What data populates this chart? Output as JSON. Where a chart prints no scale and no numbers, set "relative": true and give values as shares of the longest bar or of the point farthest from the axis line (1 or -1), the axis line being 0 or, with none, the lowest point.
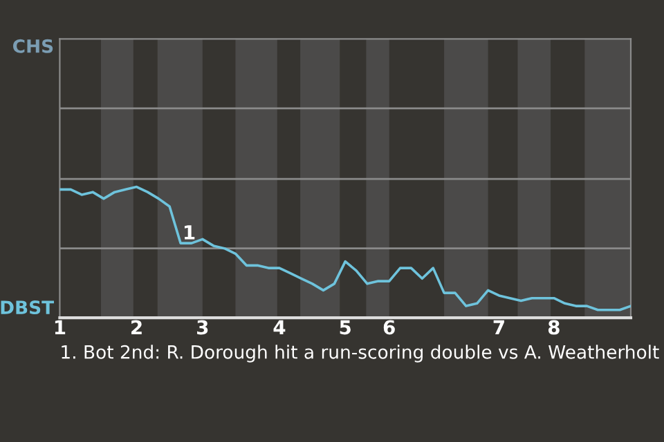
{
  "chart_data": {
    "type": "line",
    "relative": true,
    "categories": [
      "1",
      null,
      null,
      null,
      null,
      null,
      null,
      "2",
      null,
      null,
      null,
      null,
      null,
      "3",
      null,
      null,
      null,
      null,
      null,
      null,
      "4",
      null,
      null,
      null,
      null,
      null,
      "5",
      null,
      null,
      null,
      "6",
      null,
      null,
      null,
      null,
      null,
      null,
      null,
      null,
      null,
      "7",
      null,
      null,
      null,
      null,
      "8",
      null,
      null,
      null,
      null,
      null,
      null,
      null
    ],
    "series": [
      {
        "color": "#6ec3dc",
        "values": [
          0.98,
          0.98,
          0.94,
          0.96,
          0.91,
          0.96,
          0.98,
          1,
          0.96,
          0.91,
          0.85,
          0.57,
          0.57,
          0.6,
          0.55,
          0.53,
          0.49,
          0.4,
          0.4,
          0.38,
          0.38,
          0.34,
          0.3,
          0.26,
          0.21,
          0.26,
          0.43,
          0.36,
          0.26,
          0.28,
          0.28,
          0.38,
          0.38,
          0.3,
          0.38,
          0.19,
          0.19,
          0.09,
          0.11,
          0.21,
          0.17,
          0.15,
          0.13,
          0.15,
          0.15,
          0.15,
          0.11,
          0.09,
          0.09,
          0.06,
          0.06,
          0.06,
          0.09
        ]
      }
    ],
    "ref_lines": [
      {
        "axis": "y",
        "value": 0.53,
        "color": "#8a8a8a"
      },
      {
        "axis": "y",
        "value": 1.06,
        "color": "#8a8a8a"
      },
      {
        "axis": "y",
        "value": 1.6,
        "color": "#8a8a8a"
      }
    ],
    "annotations": [
      "CHS",
      "DBST",
      {
        "text": "1",
        "y": 0.57
      },
      "1. Bot 2nd: R. Dorough hit a run-scoring double vs A. Weatherholt"
    ],
    "legend": false,
    "marker": "none",
    "line_style": "solid"
  }
}
